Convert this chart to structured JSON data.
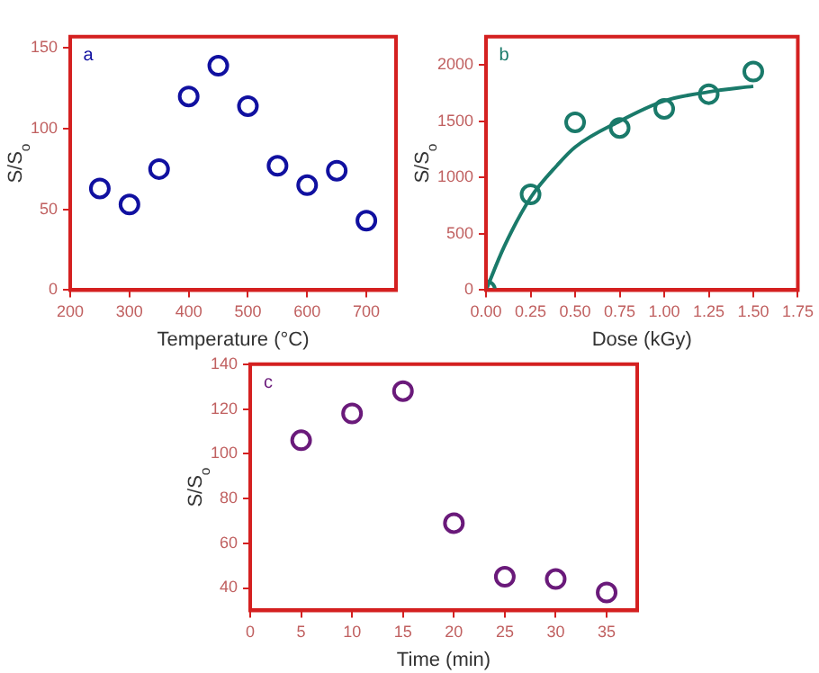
{
  "chart_data": [
    {
      "type": "scatter",
      "xlabel": "Temperature (°C)",
      "ylabel": "S/S$_{o}$",
      "annotations": [
        "a"
      ],
      "marker": "circle",
      "grid": false,
      "legend": false,
      "x": [
        250,
        300,
        350,
        400,
        450,
        500,
        550,
        600,
        650,
        700
      ],
      "series": [
        {
          "color": "#1010a0",
          "values": [
            63,
            53,
            75,
            120,
            139,
            114,
            77,
            65,
            74,
            43
          ]
        }
      ],
      "xlim": [
        200,
        750
      ],
      "xticks": [
        200,
        300,
        400,
        500,
        600,
        700
      ],
      "ylim": [
        0,
        157
      ],
      "yticks": [
        0,
        50,
        100,
        150
      ]
    },
    {
      "type": "scatter",
      "xlabel": "Dose (kGy)",
      "ylabel": "S/S$_{o}$",
      "annotations": [
        "b"
      ],
      "marker": "circle",
      "grid": false,
      "legend": false,
      "x": [
        0,
        0.25,
        0.5,
        0.75,
        1.0,
        1.25,
        1.5
      ],
      "series": [
        {
          "color": "#1a7a6a",
          "values": [
            0,
            850,
            1490,
            1440,
            1610,
            1740,
            1940
          ]
        },
        {
          "type": "line",
          "marker": "none",
          "color": "#1a7a6a",
          "x": [
            0,
            0.1,
            0.25,
            0.4,
            0.5,
            0.75,
            1.0,
            1.25,
            1.5
          ],
          "values": [
            0,
            380,
            820,
            1110,
            1270,
            1500,
            1680,
            1760,
            1810
          ]
        }
      ],
      "xlim": [
        0,
        1.75
      ],
      "xticks": [
        "0.00",
        0.25,
        "0.50",
        0.75,
        "1.00",
        1.25,
        "1.50",
        1.75
      ],
      "ylim": [
        0,
        2250
      ],
      "yticks": [
        0,
        500,
        1000,
        1500,
        2000
      ]
    },
    {
      "type": "scatter",
      "xlabel": "Time (min)",
      "ylabel": "S/S$_{o}$",
      "annotations": [
        "c"
      ],
      "marker": "circle",
      "grid": false,
      "legend": false,
      "x": [
        5,
        10,
        15,
        20,
        25,
        30,
        35
      ],
      "series": [
        {
          "color": "#6a1a7a",
          "values": [
            106,
            118,
            128,
            69,
            45,
            44,
            38
          ]
        }
      ],
      "xlim": [
        0,
        38
      ],
      "xticks": [
        0,
        5,
        10,
        15,
        20,
        25,
        30,
        35
      ],
      "ylim": [
        30,
        140
      ],
      "yticks": [
        40,
        60,
        80,
        100,
        120,
        140
      ]
    }
  ]
}
